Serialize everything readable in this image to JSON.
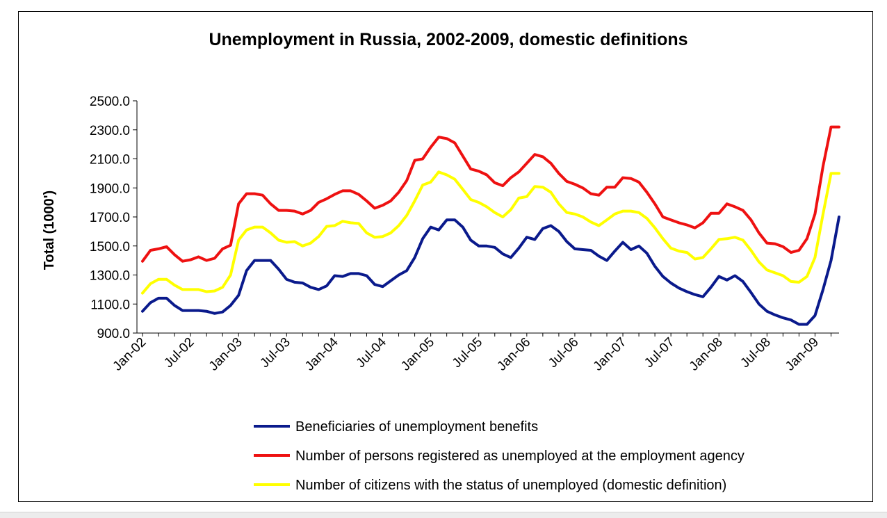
{
  "chart_data": {
    "type": "line",
    "title": "Unemployment in Russia, 2002-2009, domestic definitions",
    "ylabel": "Total (1000')",
    "xlabel": "",
    "ylim": [
      900,
      2500
    ],
    "yticks": [
      "2500.0",
      "2300.0",
      "2100.0",
      "1900.0",
      "1700.0",
      "1500.0",
      "1300.0",
      "1100.0",
      "900.0"
    ],
    "ytick_values": [
      2500,
      2300,
      2100,
      1900,
      1700,
      1500,
      1300,
      1100,
      900
    ],
    "x_tick_labels": [
      "Jan-02",
      "Jul-02",
      "Jan-03",
      "Jul-03",
      "Jan-04",
      "Jul-04",
      "Jan-05",
      "Jul-05",
      "Jan-06",
      "Jul-06",
      "Jan-07",
      "Jul-07",
      "Jan-08",
      "Jul-08",
      "Jan-09"
    ],
    "x_tick_months": [
      0,
      6,
      12,
      18,
      24,
      30,
      36,
      42,
      48,
      54,
      60,
      66,
      72,
      78,
      84
    ],
    "x_range_months": [
      0,
      87
    ],
    "grid": false,
    "legend_position": "bottom",
    "series": [
      {
        "name": "Beneficiaries of unemployment benefits",
        "color": "#0a1a8c",
        "months": [
          0,
          1,
          2,
          3,
          4,
          5,
          6,
          7,
          8,
          9,
          10,
          11,
          12,
          13,
          14,
          15,
          16,
          17,
          18,
          19,
          20,
          21,
          22,
          23,
          24,
          25,
          26,
          27,
          28,
          29,
          30,
          31,
          32,
          33,
          34,
          35,
          36,
          37,
          38,
          39,
          40,
          41,
          42,
          43,
          44,
          45,
          46,
          47,
          48,
          49,
          50,
          51,
          52,
          53,
          54,
          55,
          56,
          57,
          58,
          59,
          60,
          61,
          62,
          63,
          64,
          65,
          66,
          67,
          68,
          69,
          70,
          71,
          72,
          73,
          74,
          75,
          76,
          77,
          78,
          79,
          80,
          81,
          82,
          83,
          84,
          85,
          86,
          87
        ],
        "values": [
          1050,
          1110,
          1140,
          1140,
          1090,
          1055,
          1055,
          1055,
          1050,
          1035,
          1045,
          1090,
          1160,
          1330,
          1400,
          1400,
          1400,
          1340,
          1270,
          1250,
          1245,
          1215,
          1200,
          1225,
          1295,
          1290,
          1310,
          1310,
          1295,
          1235,
          1220,
          1260,
          1300,
          1330,
          1420,
          1550,
          1630,
          1610,
          1680,
          1680,
          1630,
          1540,
          1500,
          1500,
          1490,
          1445,
          1420,
          1485,
          1560,
          1545,
          1620,
          1640,
          1600,
          1530,
          1480,
          1475,
          1470,
          1430,
          1400,
          1465,
          1525,
          1475,
          1500,
          1450,
          1360,
          1290,
          1245,
          1210,
          1185,
          1165,
          1150,
          1215,
          1290,
          1265,
          1295,
          1255,
          1180,
          1100,
          1050,
          1025,
          1005,
          990,
          960,
          960,
          1020,
          1200,
          1400,
          1700
        ]
      },
      {
        "name": "Number of persons registered as unemployed at the employment agency",
        "color": "#ee1111",
        "months": [
          0,
          1,
          2,
          3,
          4,
          5,
          6,
          7,
          8,
          9,
          10,
          11,
          12,
          13,
          14,
          15,
          16,
          17,
          18,
          19,
          20,
          21,
          22,
          23,
          24,
          25,
          26,
          27,
          28,
          29,
          30,
          31,
          32,
          33,
          34,
          35,
          36,
          37,
          38,
          39,
          40,
          41,
          42,
          43,
          44,
          45,
          46,
          47,
          48,
          49,
          50,
          51,
          52,
          53,
          54,
          55,
          56,
          57,
          58,
          59,
          60,
          61,
          62,
          63,
          64,
          65,
          66,
          67,
          68,
          69,
          70,
          71,
          72,
          73,
          74,
          75,
          76,
          77,
          78,
          79,
          80,
          81,
          82,
          83,
          84,
          85,
          86,
          87
        ],
        "values": [
          1395,
          1470,
          1480,
          1495,
          1440,
          1395,
          1405,
          1425,
          1400,
          1415,
          1480,
          1505,
          1790,
          1860,
          1860,
          1850,
          1790,
          1745,
          1745,
          1740,
          1720,
          1745,
          1800,
          1825,
          1855,
          1880,
          1880,
          1855,
          1810,
          1760,
          1780,
          1810,
          1870,
          1950,
          2090,
          2100,
          2180,
          2250,
          2240,
          2210,
          2120,
          2030,
          2015,
          1990,
          1935,
          1915,
          1970,
          2010,
          2070,
          2130,
          2115,
          2070,
          2000,
          1945,
          1925,
          1900,
          1860,
          1850,
          1905,
          1905,
          1970,
          1965,
          1940,
          1870,
          1790,
          1700,
          1680,
          1660,
          1645,
          1625,
          1660,
          1725,
          1725,
          1790,
          1770,
          1745,
          1680,
          1590,
          1520,
          1515,
          1495,
          1455,
          1470,
          1550,
          1720,
          2050,
          2320,
          2320
        ]
      },
      {
        "name": "Number of citizens with the status of unemployed (domestic definition)",
        "color": "#ffff00",
        "months": [
          0,
          1,
          2,
          3,
          4,
          5,
          6,
          7,
          8,
          9,
          10,
          11,
          12,
          13,
          14,
          15,
          16,
          17,
          18,
          19,
          20,
          21,
          22,
          23,
          24,
          25,
          26,
          27,
          28,
          29,
          30,
          31,
          32,
          33,
          34,
          35,
          36,
          37,
          38,
          39,
          40,
          41,
          42,
          43,
          44,
          45,
          46,
          47,
          48,
          49,
          50,
          51,
          52,
          53,
          54,
          55,
          56,
          57,
          58,
          59,
          60,
          61,
          62,
          63,
          64,
          65,
          66,
          67,
          68,
          69,
          70,
          71,
          72,
          73,
          74,
          75,
          76,
          77,
          78,
          79,
          80,
          81,
          82,
          83,
          84,
          85,
          86,
          87
        ],
        "values": [
          1175,
          1240,
          1270,
          1270,
          1230,
          1200,
          1200,
          1200,
          1185,
          1190,
          1215,
          1300,
          1540,
          1610,
          1630,
          1630,
          1590,
          1540,
          1525,
          1530,
          1500,
          1520,
          1565,
          1635,
          1640,
          1670,
          1660,
          1655,
          1590,
          1560,
          1565,
          1590,
          1640,
          1710,
          1810,
          1920,
          1940,
          2010,
          1990,
          1960,
          1890,
          1820,
          1800,
          1770,
          1730,
          1700,
          1750,
          1830,
          1840,
          1910,
          1905,
          1870,
          1790,
          1730,
          1720,
          1700,
          1665,
          1640,
          1680,
          1720,
          1740,
          1740,
          1730,
          1690,
          1625,
          1550,
          1485,
          1465,
          1455,
          1410,
          1420,
          1480,
          1545,
          1550,
          1560,
          1540,
          1470,
          1390,
          1335,
          1315,
          1295,
          1255,
          1250,
          1290,
          1420,
          1720,
          2000,
          2000
        ]
      }
    ]
  }
}
